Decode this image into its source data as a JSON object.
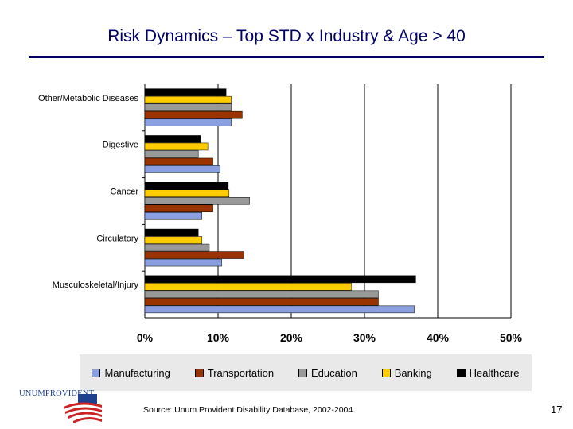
{
  "slide": {
    "title": "Risk Dynamics – Top STD x  Industry & Age > 40",
    "source": "Source: Unum.Provident Disability Database, 2002-2004.",
    "page_number": "17",
    "logo_text": "UNUMPROVIDENT"
  },
  "chart_data": {
    "type": "bar",
    "orientation": "horizontal",
    "title": "",
    "xlabel": "",
    "ylabel": "",
    "categories": [
      "Other/Metabolic Diseases",
      "Digestive",
      "Cancer",
      "Circulatory",
      "Musculoskeletal/Injury"
    ],
    "xlim": [
      0,
      50
    ],
    "x_ticks": [
      "0%",
      "10%",
      "20%",
      "30%",
      "40%",
      "50%"
    ],
    "grid": "vertical",
    "legend_position": "bottom",
    "series": [
      {
        "name": "Manufacturing",
        "color": "#8a9fe0",
        "values": [
          11.8,
          10.3,
          7.8,
          10.5,
          36.8
        ]
      },
      {
        "name": "Transportation",
        "color": "#993300",
        "values": [
          13.3,
          9.3,
          9.3,
          13.5,
          31.9
        ]
      },
      {
        "name": "Education",
        "color": "#999999",
        "values": [
          11.8,
          7.3,
          14.3,
          8.8,
          31.9
        ]
      },
      {
        "name": "Banking",
        "color": "#ffcc00",
        "values": [
          11.8,
          8.6,
          11.5,
          7.8,
          28.2
        ]
      },
      {
        "name": "Healthcare",
        "color": "#000000",
        "values": [
          11.1,
          7.6,
          11.4,
          7.3,
          37.0
        ]
      }
    ]
  }
}
